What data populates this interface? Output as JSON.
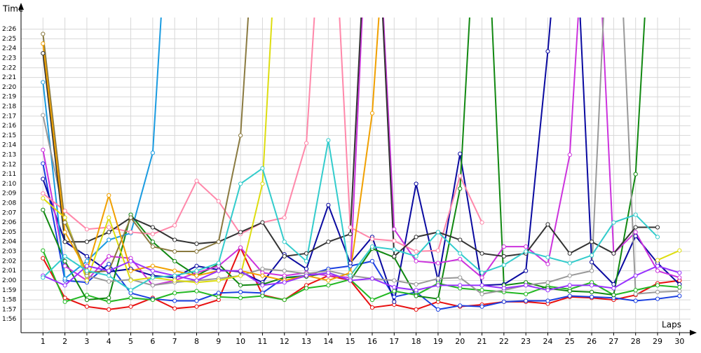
{
  "chart_data": {
    "type": "line",
    "y_label": "Time",
    "x_label": "Laps",
    "x": [
      1,
      2,
      3,
      4,
      5,
      6,
      7,
      8,
      9,
      10,
      11,
      12,
      13,
      14,
      15,
      16,
      17,
      18,
      19,
      20,
      21,
      22,
      23,
      24,
      25,
      26,
      27,
      28,
      29,
      30
    ],
    "xlim": [
      0,
      30.5
    ],
    "xticks": [
      1,
      2,
      3,
      4,
      5,
      6,
      7,
      8,
      9,
      10,
      11,
      12,
      13,
      14,
      15,
      16,
      17,
      18,
      19,
      20,
      21,
      22,
      23,
      24,
      25,
      26,
      27,
      28,
      29,
      30
    ],
    "ylim": [
      114.6,
      147.2
    ],
    "yticks": [
      {
        "value": 116,
        "label": "1:56"
      },
      {
        "value": 117,
        "label": "1:57"
      },
      {
        "value": 118,
        "label": "1:58"
      },
      {
        "value": 119,
        "label": "1:59"
      },
      {
        "value": 120,
        "label": "2:00"
      },
      {
        "value": 121,
        "label": "2:01"
      },
      {
        "value": 122,
        "label": "2:02"
      },
      {
        "value": 123,
        "label": "2:03"
      },
      {
        "value": 124,
        "label": "2:04"
      },
      {
        "value": 125,
        "label": "2:05"
      },
      {
        "value": 126,
        "label": "2:06"
      },
      {
        "value": 127,
        "label": "2:07"
      },
      {
        "value": 128,
        "label": "2:08"
      },
      {
        "value": 129,
        "label": "2:09"
      },
      {
        "value": 130,
        "label": "2:10"
      },
      {
        "value": 131,
        "label": "2:11"
      },
      {
        "value": 132,
        "label": "2:12"
      },
      {
        "value": 133,
        "label": "2:13"
      },
      {
        "value": 134,
        "label": "2:14"
      },
      {
        "value": 135,
        "label": "2:15"
      },
      {
        "value": 136,
        "label": "2:16"
      },
      {
        "value": 137,
        "label": "2:17"
      },
      {
        "value": 138,
        "label": "2:18"
      },
      {
        "value": 139,
        "label": "2:19"
      },
      {
        "value": 140,
        "label": "2:20"
      },
      {
        "value": 141,
        "label": "2:21"
      },
      {
        "value": 142,
        "label": "2:22"
      },
      {
        "value": 143,
        "label": "2:23"
      },
      {
        "value": 144,
        "label": "2:24"
      },
      {
        "value": 145,
        "label": "2:25"
      },
      {
        "value": 146,
        "label": "2:26"
      }
    ],
    "grid": true,
    "series": [
      {
        "color": "#e81010",
        "values": [
          122.3,
          118.2,
          117.3,
          117.0,
          117.3,
          118.2,
          117.1,
          117.3,
          118.0,
          123.4,
          118.5,
          118.0,
          119.5,
          120.5,
          120.0,
          117.2,
          117.5,
          117.0,
          117.8,
          117.3,
          117.5,
          117.8,
          117.8,
          117.6,
          118.3,
          118.2,
          118.0,
          118.5,
          119.7,
          120.0
        ]
      },
      {
        "color": "#1a3fe0",
        "values": [
          132.1,
          120.0,
          119.8,
          121.7,
          118.7,
          118.1,
          117.9,
          117.9,
          118.7,
          118.8,
          118.7,
          120.3,
          120.5,
          121.2,
          121.5,
          122.0,
          118.3,
          118.8,
          117.0,
          117.4,
          117.3,
          117.8,
          117.9,
          117.9,
          118.4,
          118.3,
          118.2,
          117.9,
          118.1,
          118.4
        ]
      },
      {
        "color": "#0a0aa0",
        "values": [
          130.5,
          124.0,
          122.5,
          120.9,
          121.2,
          120.5,
          120.3,
          121.5,
          121.1,
          120.9,
          119.8,
          122.7,
          121.2,
          127.8,
          121.8,
          124.5,
          117.8,
          130.0,
          120.0,
          133.1,
          119.5,
          119.6,
          121.0,
          143.7,
          170,
          121.9,
          119.6,
          124.6,
          121.8,
          119.6
        ]
      },
      {
        "color": "#22b822",
        "values": [
          123.1,
          117.8,
          118.5,
          117.8,
          118.2,
          118.0,
          118.7,
          118.9,
          118.3,
          118.2,
          118.4,
          118.0,
          119.2,
          119.5,
          120.1,
          118.0,
          118.9,
          118.5,
          119.7,
          119.2,
          119.0,
          118.8,
          118.6,
          119.4,
          119.1,
          119.8,
          118.5,
          119.0,
          119.5,
          119.3
        ]
      },
      {
        "color": "#118811",
        "values": [
          127.3,
          122.0,
          118.0,
          118.2,
          126.8,
          124.0,
          122.0,
          120.5,
          121.7,
          119.5,
          119.6,
          120.3,
          120.4,
          120.8,
          120.0,
          123.3,
          122.4,
          118.4,
          118.1,
          129.5,
          170,
          119.5,
          119.8,
          119.2,
          118.9,
          118.8,
          118.5,
          131.0,
          170,
          null
        ]
      },
      {
        "color": "#cc33dd",
        "values": [
          133.5,
          121.5,
          120.0,
          122.5,
          122.3,
          119.5,
          120.0,
          120.8,
          121.5,
          123.4,
          120.8,
          120.5,
          120.8,
          120.5,
          120.3,
          170,
          125.3,
          122.0,
          121.8,
          122.2,
          120.3,
          123.5,
          123.5,
          121.7,
          133.0,
          170,
          122.8,
          125.0,
          121.0,
          120.3
        ]
      },
      {
        "color": "#1a9be0",
        "values": [
          140.5,
          120.2,
          122.0,
          124.2,
          124.9,
          133.2,
          170,
          null,
          null,
          null,
          null,
          null,
          null,
          null,
          null,
          null,
          null,
          null,
          null,
          null,
          null,
          null,
          null,
          null,
          null,
          null,
          null,
          null,
          null,
          null
        ]
      },
      {
        "color": "#ff88aa",
        "values": [
          129.0,
          127.2,
          125.3,
          125.5,
          125.0,
          124.8,
          125.7,
          130.3,
          128.2,
          124.8,
          126.0,
          126.5,
          134.2,
          170,
          125.5,
          124.3,
          124.1,
          123.0,
          123.1,
          130.8,
          126.0,
          null,
          null,
          null,
          null,
          null,
          null,
          null,
          null,
          null
        ]
      },
      {
        "color": "#999999",
        "values": [
          137.1,
          126.5,
          120.5,
          119.9,
          120.1,
          119.5,
          119.8,
          120.0,
          120.2,
          120.5,
          121.2,
          121.0,
          120.7,
          121.0,
          120.5,
          120.2,
          120.0,
          119.6,
          120.2,
          120.3,
          118.6,
          119.0,
          119.5,
          119.8,
          120.5,
          121.0,
          170,
          118.6,
          118.8,
          118.9
        ]
      },
      {
        "color": "#333333",
        "values": [
          143.5,
          124.0,
          124.0,
          125.0,
          126.5,
          125.5,
          124.2,
          123.8,
          124.0,
          125.0,
          126.0,
          122.5,
          122.8,
          124.0,
          124.8,
          170,
          122.5,
          124.5,
          125.0,
          124.2,
          122.8,
          122.5,
          122.8,
          125.8,
          122.8,
          124.0,
          122.8,
          125.5,
          125.5,
          null
        ]
      },
      {
        "color": "#dddd10",
        "values": [
          128.5,
          126.5,
          120.0,
          126.5,
          120.0,
          120.3,
          120.0,
          119.8,
          120.0,
          120.5,
          130.0,
          170,
          null,
          null,
          null,
          null,
          null,
          null,
          null,
          null,
          null,
          null,
          null,
          null,
          null,
          null,
          null,
          null,
          122.1,
          123.1
        ]
      },
      {
        "color": "#8a7a40",
        "values": [
          145.5,
          126.0,
          120.8,
          121.0,
          126.5,
          123.5,
          123.0,
          123.0,
          124.0,
          135.0,
          170,
          null,
          null,
          null,
          null,
          null,
          null,
          null,
          null,
          null,
          null,
          null,
          null,
          null,
          null,
          null,
          null,
          null,
          null,
          null
        ]
      },
      {
        "color": "#f0a000",
        "values": [
          144.5,
          125.0,
          121.0,
          128.8,
          121.0,
          121.5,
          121.0,
          120.5,
          121.0,
          121.0,
          120.5,
          120.0,
          120.5,
          120.0,
          120.8,
          137.3,
          170,
          null,
          null,
          null,
          null,
          null,
          null,
          null,
          null,
          null,
          null,
          null,
          null,
          null
        ]
      },
      {
        "color": "#9933ff",
        "values": [
          120.5,
          119.5,
          121.5,
          121.0,
          122.0,
          121.0,
          120.5,
          120.0,
          121.0,
          121.0,
          119.5,
          119.8,
          120.5,
          120.8,
          120.0,
          120.2,
          119.3,
          119.0,
          119.5,
          119.5,
          119.5,
          119.2,
          119.5,
          119.0,
          119.5,
          119.5,
          119.2,
          120.5,
          121.5,
          120.8
        ]
      },
      {
        "color": "#33cccc",
        "values": [
          120.3,
          122.5,
          121.0,
          120.5,
          119.0,
          120.3,
          120.5,
          121.0,
          121.8,
          130.0,
          131.6,
          124.0,
          122.0,
          134.5,
          120.5,
          123.5,
          123.2,
          122.5,
          125.0,
          122.8,
          120.8,
          121.6,
          123.0,
          122.4,
          121.8,
          122.6,
          126.0,
          126.8,
          124.5,
          null
        ]
      }
    ]
  }
}
